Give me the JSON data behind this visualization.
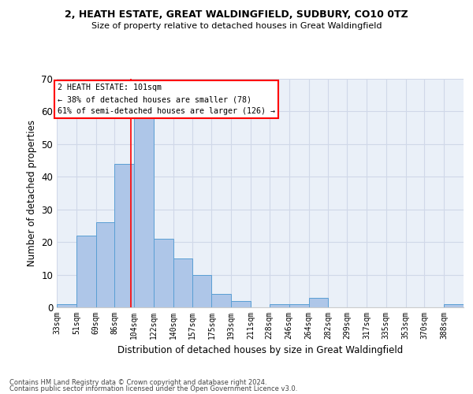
{
  "title1": "2, HEATH ESTATE, GREAT WALDINGFIELD, SUDBURY, CO10 0TZ",
  "title2": "Size of property relative to detached houses in Great Waldingfield",
  "xlabel": "Distribution of detached houses by size in Great Waldingfield",
  "ylabel": "Number of detached properties",
  "footer1": "Contains HM Land Registry data © Crown copyright and database right 2024.",
  "footer2": "Contains public sector information licensed under the Open Government Licence v3.0.",
  "bin_labels": [
    "33sqm",
    "51sqm",
    "69sqm",
    "86sqm",
    "104sqm",
    "122sqm",
    "140sqm",
    "157sqm",
    "175sqm",
    "193sqm",
    "211sqm",
    "228sqm",
    "246sqm",
    "264sqm",
    "282sqm",
    "299sqm",
    "317sqm",
    "335sqm",
    "353sqm",
    "370sqm",
    "388sqm"
  ],
  "bin_edges": [
    33,
    51,
    69,
    86,
    104,
    122,
    140,
    157,
    175,
    193,
    211,
    228,
    246,
    264,
    282,
    299,
    317,
    335,
    353,
    370,
    388,
    406
  ],
  "counts": [
    1,
    22,
    26,
    44,
    58,
    21,
    15,
    10,
    4,
    2,
    0,
    1,
    1,
    3,
    0,
    0,
    0,
    0,
    0,
    0,
    1
  ],
  "bar_color": "#aec6e8",
  "bar_edge_color": "#5a9fd4",
  "grid_color": "#d0d8e8",
  "bg_color": "#eaf0f8",
  "red_line_x": 101,
  "annotation_title": "2 HEATH ESTATE: 101sqm",
  "annotation_line1": "← 38% of detached houses are smaller (78)",
  "annotation_line2": "61% of semi-detached houses are larger (126) →",
  "ylim": [
    0,
    70
  ],
  "yticks": [
    0,
    10,
    20,
    30,
    40,
    50,
    60,
    70
  ]
}
